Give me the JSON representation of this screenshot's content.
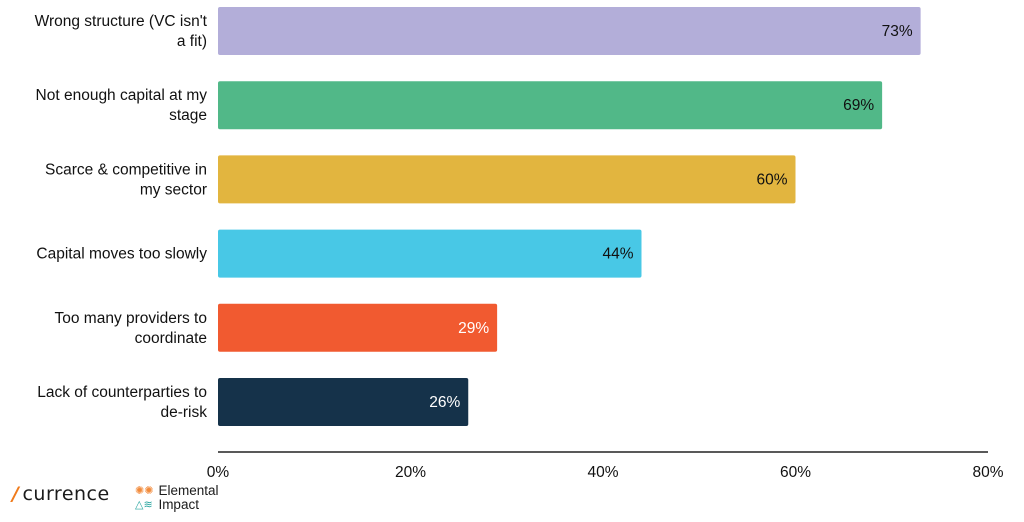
{
  "chart_data": {
    "type": "bar",
    "orientation": "horizontal",
    "categories": [
      [
        "Wrong structure (VC isn't",
        "a fit)"
      ],
      [
        "Not enough capital at my",
        "stage"
      ],
      [
        "Scarce & competitive in",
        "my sector"
      ],
      [
        "Capital moves too slowly"
      ],
      [
        "Too many providers to",
        "coordinate"
      ],
      [
        "Lack of counterparties to",
        "de-risk"
      ]
    ],
    "values": [
      73,
      69,
      60,
      44,
      29,
      26
    ],
    "value_labels": [
      "73%",
      "69%",
      "60%",
      "44%",
      "29%",
      "26%"
    ],
    "colors": [
      "#b3aed9",
      "#51b888",
      "#e2b53f",
      "#48c8e6",
      "#f15a30",
      "#15324a"
    ],
    "value_label_colors": [
      "#111111",
      "#111111",
      "#111111",
      "#111111",
      "#ffffff",
      "#ffffff"
    ],
    "xlim": [
      0,
      80
    ],
    "ticks": [
      0,
      20,
      40,
      60,
      80
    ],
    "tick_labels": [
      "0%",
      "20%",
      "40%",
      "60%",
      "80%"
    ],
    "grid": false
  },
  "logos": {
    "currence": {
      "slash": "/",
      "name": "currence"
    },
    "elemental": {
      "line1": "Elemental",
      "line2": "Impact",
      "mark1": "✺✺",
      "mark2": "△≋"
    }
  }
}
